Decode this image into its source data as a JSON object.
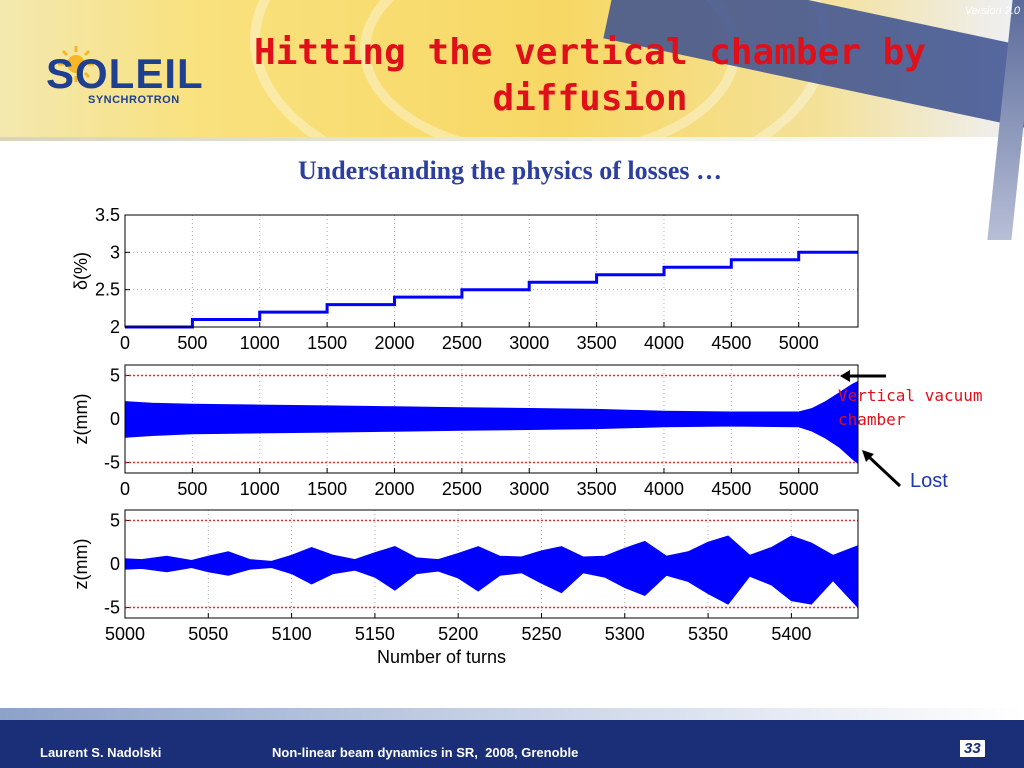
{
  "slide": {
    "version": "Version 2.0",
    "logo": {
      "word": "SOLEIL",
      "sub": "SYNCHROTRON"
    },
    "title": "Hitting the vertical chamber by diffusion",
    "subtitle": "Understanding the physics of losses …",
    "annotation_chamber": "Vertical vacuum chamber",
    "annotation_lost": "Lost",
    "footer_author": "Laurent S. Nadolski",
    "footer_event": "Non-linear beam dynamics in SR,  2008, Grenoble",
    "page_number": "33"
  },
  "colors": {
    "title": "#e0101b",
    "subtitle": "#2c3fa0",
    "series": "#0000ff",
    "limit": "#e03030",
    "footer": "#1a2f77"
  },
  "chart_data": [
    {
      "type": "line",
      "ylabel": "δ(%)",
      "xlim": [
        0,
        5440
      ],
      "ylim": [
        2,
        3.5
      ],
      "xticks": [
        "0",
        "500",
        "1000",
        "1500",
        "2000",
        "2500",
        "3000",
        "3500",
        "4000",
        "4500",
        "5000"
      ],
      "yticks": [
        "2",
        "2.5",
        "3",
        "3.5"
      ],
      "grid": true,
      "series": [
        {
          "x": [
            0,
            500,
            500,
            1000,
            1000,
            1500,
            1500,
            2000,
            2000,
            2500,
            2500,
            3000,
            3000,
            3500,
            3500,
            4000,
            4000,
            4500,
            4500,
            5000,
            5000,
            5440
          ],
          "y": [
            2,
            2,
            2.1,
            2.1,
            2.2,
            2.2,
            2.3,
            2.3,
            2.4,
            2.4,
            2.5,
            2.5,
            2.6,
            2.6,
            2.7,
            2.7,
            2.8,
            2.8,
            2.9,
            2.9,
            3.0,
            3.0
          ]
        }
      ]
    },
    {
      "type": "area",
      "ylabel": "z(mm)",
      "xlim": [
        0,
        5440
      ],
      "ylim": [
        -6.2,
        6.2
      ],
      "xticks": [
        "0",
        "500",
        "1000",
        "1500",
        "2000",
        "2500",
        "3000",
        "3500",
        "4000",
        "4500",
        "5000"
      ],
      "yticks": [
        "-5",
        "0",
        "5"
      ],
      "limits": [
        5,
        -5
      ],
      "grid": true,
      "envelope": {
        "x": [
          0,
          200,
          500,
          1000,
          1500,
          2000,
          2500,
          3000,
          3500,
          4000,
          4500,
          5000,
          5100,
          5200,
          5300,
          5400,
          5440
        ],
        "upper": [
          2.0,
          1.8,
          1.7,
          1.6,
          1.5,
          1.4,
          1.3,
          1.2,
          1.1,
          0.9,
          0.8,
          0.8,
          1.2,
          2.0,
          3.0,
          4.0,
          4.3
        ],
        "lower": [
          -2.1,
          -1.9,
          -1.7,
          -1.6,
          -1.5,
          -1.4,
          -1.3,
          -1.2,
          -1.1,
          -0.9,
          -0.8,
          -0.9,
          -1.4,
          -2.2,
          -3.2,
          -4.6,
          -5.1
        ]
      }
    },
    {
      "type": "area",
      "ylabel": "z(mm)",
      "xlabel": "Number of turns",
      "xlim": [
        5000,
        5440
      ],
      "ylim": [
        -6.2,
        6.2
      ],
      "xticks": [
        "5000",
        "5050",
        "5100",
        "5150",
        "5200",
        "5250",
        "5300",
        "5350",
        "5400"
      ],
      "yticks": [
        "-5",
        "0",
        "5"
      ],
      "limits": [
        5,
        -5
      ],
      "grid": true,
      "envelope": {
        "x": [
          5000,
          5010,
          5025,
          5040,
          5050,
          5062,
          5075,
          5088,
          5100,
          5112,
          5125,
          5138,
          5150,
          5162,
          5175,
          5188,
          5200,
          5212,
          5225,
          5238,
          5250,
          5262,
          5275,
          5288,
          5300,
          5312,
          5325,
          5338,
          5350,
          5362,
          5375,
          5388,
          5400,
          5412,
          5425,
          5440
        ],
        "upper": [
          0.6,
          0.5,
          0.9,
          0.4,
          0.9,
          1.4,
          0.5,
          0.3,
          1.0,
          1.9,
          1.0,
          0.5,
          1.3,
          2.0,
          0.7,
          0.5,
          1.2,
          2.0,
          0.9,
          0.8,
          1.5,
          2.0,
          0.8,
          0.9,
          1.8,
          2.6,
          0.9,
          1.4,
          2.5,
          3.2,
          1.0,
          1.9,
          3.2,
          2.4,
          1.0,
          2.1
        ],
        "lower": [
          -0.6,
          -0.5,
          -0.9,
          -0.4,
          -0.9,
          -1.3,
          -0.6,
          -0.4,
          -1.1,
          -2.3,
          -1.1,
          -0.7,
          -1.5,
          -3.0,
          -1.1,
          -0.8,
          -1.6,
          -3.1,
          -1.3,
          -1.0,
          -2.2,
          -3.3,
          -1.0,
          -1.5,
          -2.7,
          -3.6,
          -1.3,
          -2.0,
          -3.4,
          -4.6,
          -1.4,
          -2.4,
          -4.2,
          -4.6,
          -1.9,
          -5.0
        ]
      }
    }
  ]
}
